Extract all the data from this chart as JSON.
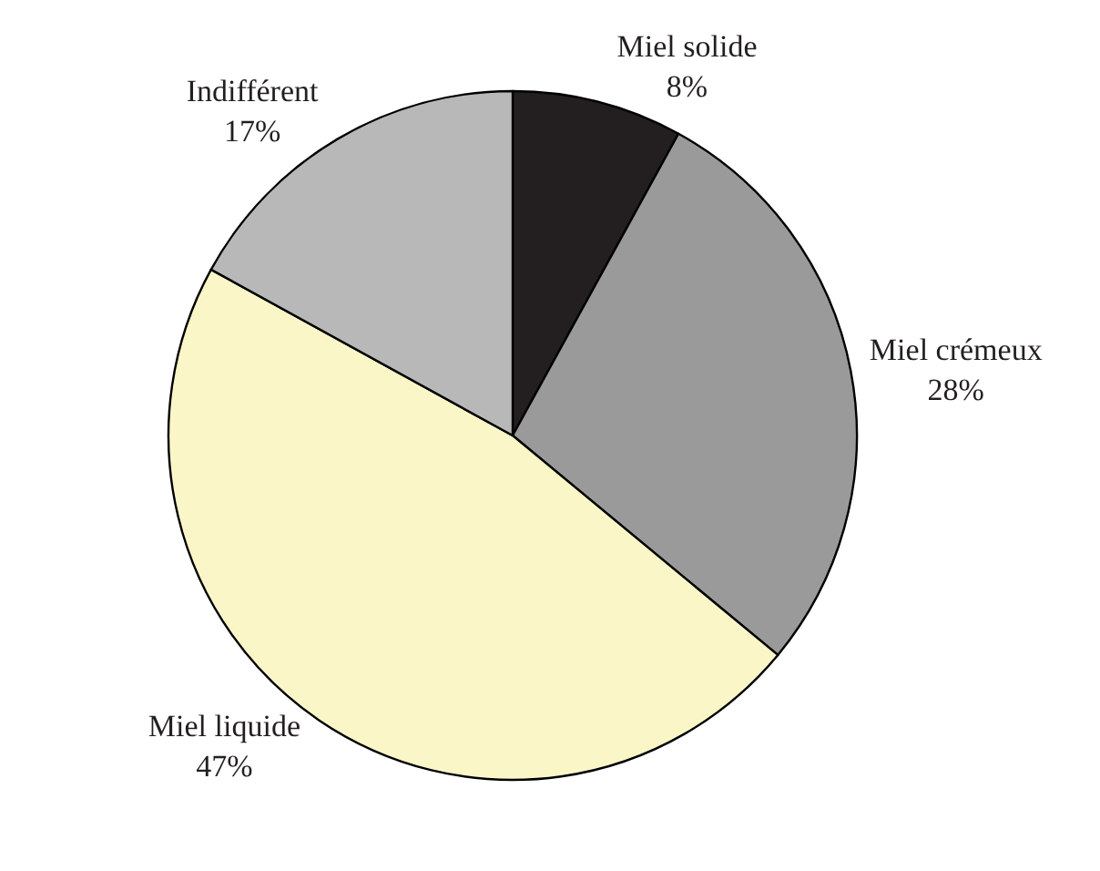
{
  "chart_data": {
    "type": "pie",
    "categories": [
      "Miel solide",
      "Miel crémeux",
      "Miel liquide",
      "Indifférent"
    ],
    "values": [
      8,
      28,
      47,
      17
    ],
    "value_labels": [
      "8%",
      "28%",
      "47%",
      "17%"
    ],
    "colors": [
      "#231f20",
      "#9a9a9a",
      "#faf6c8",
      "#b8b8b8"
    ],
    "legend": false
  }
}
